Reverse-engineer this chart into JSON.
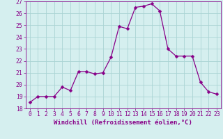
{
  "x": [
    0,
    1,
    2,
    3,
    4,
    5,
    6,
    7,
    8,
    9,
    10,
    11,
    12,
    13,
    14,
    15,
    16,
    17,
    18,
    19,
    20,
    21,
    22,
    23
  ],
  "y": [
    18.5,
    19.0,
    19.0,
    19.0,
    19.8,
    19.5,
    21.1,
    21.1,
    20.9,
    21.0,
    22.3,
    24.9,
    24.7,
    26.5,
    26.6,
    26.8,
    26.2,
    23.0,
    22.4,
    22.4,
    22.4,
    20.2,
    19.4,
    19.2
  ],
  "line_color": "#880088",
  "marker": "D",
  "marker_size": 2.5,
  "xlim": [
    -0.5,
    23.5
  ],
  "ylim": [
    18,
    27
  ],
  "yticks": [
    18,
    19,
    20,
    21,
    22,
    23,
    24,
    25,
    26,
    27
  ],
  "xticks": [
    0,
    1,
    2,
    3,
    4,
    5,
    6,
    7,
    8,
    9,
    10,
    11,
    12,
    13,
    14,
    15,
    16,
    17,
    18,
    19,
    20,
    21,
    22,
    23
  ],
  "xlabel": "Windchill (Refroidissement éolien,°C)",
  "background_color": "#d5efef",
  "grid_color": "#aad4d4",
  "tick_color": "#880088",
  "label_color": "#880088",
  "font_size_label": 6.5,
  "font_size_tick": 5.8
}
